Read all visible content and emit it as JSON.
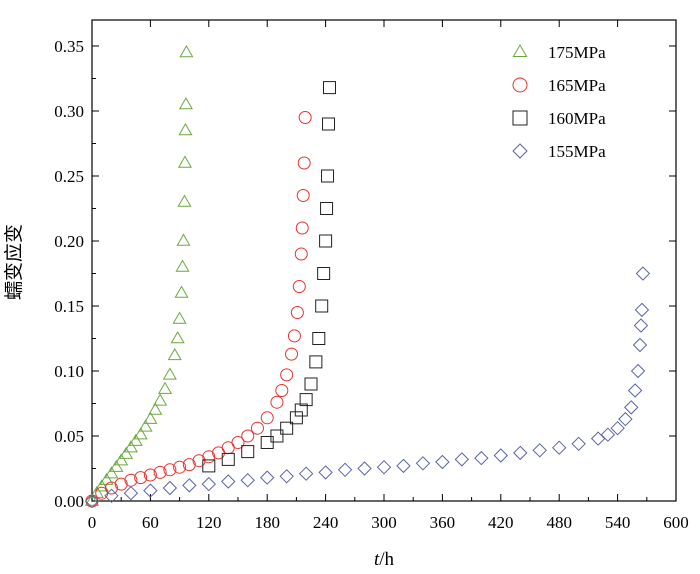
{
  "chart_data": {
    "type": "scatter",
    "title": "",
    "xlabel_italic": "t",
    "xlabel_rest": "/h",
    "ylabel": "蠕变应变",
    "xlim": [
      0,
      600
    ],
    "ylim": [
      0,
      0.37
    ],
    "x_ticks": [
      0,
      60,
      120,
      180,
      240,
      300,
      360,
      420,
      480,
      540,
      600
    ],
    "x_tick_labels": [
      "0",
      "60",
      "120",
      "180",
      "240",
      "300",
      "360",
      "420",
      "480",
      "540",
      "600"
    ],
    "y_ticks": [
      0,
      0.05,
      0.1,
      0.15,
      0.2,
      0.25,
      0.3,
      0.35
    ],
    "y_tick_labels": [
      "0.00",
      "0.05",
      "0.10",
      "0.15",
      "0.20",
      "0.25",
      "0.30",
      "0.35"
    ],
    "grid": false,
    "legend_position": "top-right",
    "series": [
      {
        "name": "175MPa",
        "color": "#6aaa3c",
        "marker": "triangle",
        "x": [
          0,
          5,
          10,
          15,
          20,
          25,
          30,
          35,
          40,
          45,
          50,
          55,
          60,
          65,
          70,
          75,
          80,
          85,
          88,
          90,
          92,
          93,
          94,
          95,
          95.5,
          96,
          96.5,
          97
        ],
        "y": [
          0,
          0.006,
          0.011,
          0.016,
          0.021,
          0.026,
          0.031,
          0.036,
          0.041,
          0.046,
          0.051,
          0.057,
          0.063,
          0.07,
          0.077,
          0.086,
          0.097,
          0.112,
          0.125,
          0.14,
          0.16,
          0.18,
          0.2,
          0.23,
          0.26,
          0.285,
          0.305,
          0.345
        ]
      },
      {
        "name": "165MPa",
        "color": "#e8332f",
        "marker": "circle",
        "x": [
          0,
          10,
          20,
          30,
          40,
          50,
          60,
          70,
          80,
          90,
          100,
          110,
          120,
          130,
          140,
          150,
          160,
          170,
          180,
          190,
          195,
          200,
          205,
          208,
          211,
          213,
          215,
          216,
          217,
          218,
          219
        ],
        "y": [
          0,
          0.006,
          0.01,
          0.013,
          0.016,
          0.018,
          0.02,
          0.022,
          0.024,
          0.026,
          0.028,
          0.031,
          0.034,
          0.037,
          0.041,
          0.045,
          0.05,
          0.056,
          0.064,
          0.076,
          0.085,
          0.097,
          0.113,
          0.127,
          0.145,
          0.165,
          0.19,
          0.21,
          0.235,
          0.26,
          0.295
        ]
      },
      {
        "name": "160MPa",
        "color": "#222222",
        "marker": "square",
        "x": [
          120,
          140,
          160,
          180,
          190,
          200,
          210,
          215,
          220,
          225,
          230,
          233,
          236,
          238,
          240,
          241,
          242,
          243,
          244
        ],
        "y": [
          0.027,
          0.032,
          0.038,
          0.045,
          0.05,
          0.056,
          0.064,
          0.07,
          0.078,
          0.09,
          0.107,
          0.125,
          0.15,
          0.175,
          0.2,
          0.225,
          0.25,
          0.29,
          0.318
        ]
      },
      {
        "name": "155MPa",
        "color": "#5a64a8",
        "marker": "diamond",
        "x": [
          0,
          20,
          40,
          60,
          80,
          100,
          120,
          140,
          160,
          180,
          200,
          220,
          240,
          260,
          280,
          300,
          320,
          340,
          360,
          380,
          400,
          420,
          440,
          460,
          480,
          500,
          520,
          530,
          540,
          548,
          554,
          558,
          561,
          563,
          564,
          565,
          566
        ],
        "y": [
          0,
          0.004,
          0.006,
          0.008,
          0.01,
          0.012,
          0.013,
          0.015,
          0.016,
          0.018,
          0.019,
          0.021,
          0.022,
          0.024,
          0.025,
          0.026,
          0.027,
          0.029,
          0.03,
          0.032,
          0.033,
          0.035,
          0.037,
          0.039,
          0.041,
          0.044,
          0.048,
          0.051,
          0.056,
          0.063,
          0.072,
          0.085,
          0.1,
          0.12,
          0.135,
          0.147,
          0.175
        ]
      }
    ]
  }
}
